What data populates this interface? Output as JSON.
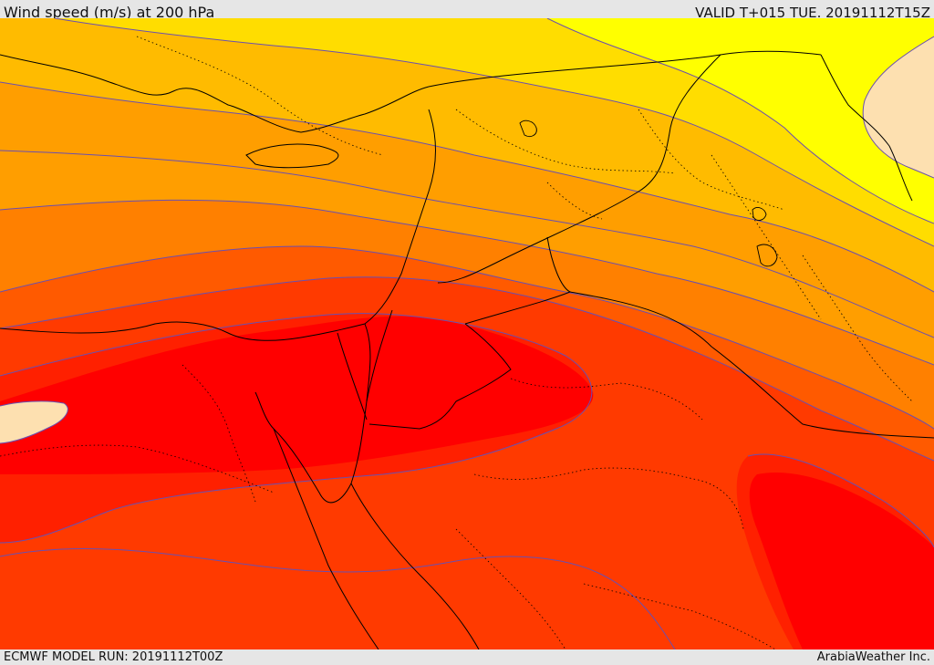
{
  "header": {
    "title": "Wind speed (m/s) at 200 hPa",
    "valid_time": "VALID T+015 TUE. 20191112T15Z"
  },
  "footer": {
    "model_run": "ECMWF MODEL RUN: 20191112T00Z",
    "credit": "ArabiaWeather Inc."
  },
  "map": {
    "colors": {
      "peach": "#fde0b0",
      "yellow": "#ffff00",
      "gold": "#ffdd00",
      "amber": "#ffbb00",
      "orange_light": "#ff9e00",
      "orange": "#ff8000",
      "orange_red": "#ff5a00",
      "red_orange": "#ff3a00",
      "red": "#ff2000",
      "deep_red": "#ff0000",
      "contour_line": "#6a4fb0",
      "border_line": "#000000"
    }
  }
}
